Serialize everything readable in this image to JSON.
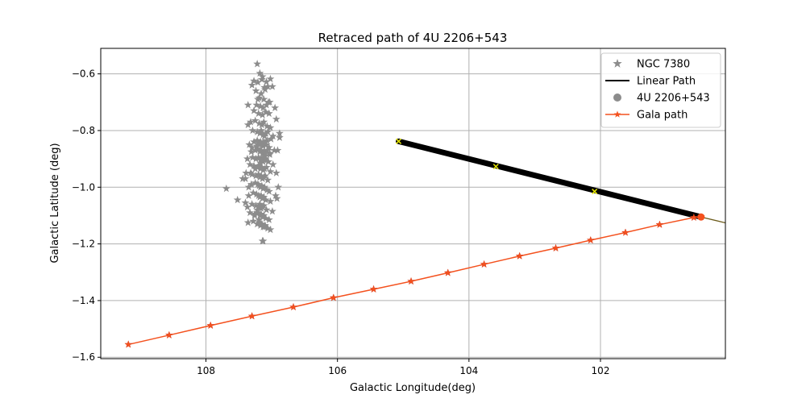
{
  "chart_data": {
    "type": "scatter",
    "title": "Retraced path of 4U 2206+543",
    "xlabel": "Galactic Longitude(deg)",
    "ylabel": "Galactic Latitude (deg)",
    "xlim": [
      109.6,
      100.1
    ],
    "ylim": [
      -1.605,
      -0.51
    ],
    "x_inverted": true,
    "xticks": [
      108,
      106,
      104,
      102
    ],
    "xtick_labels": [
      "108",
      "106",
      "104",
      "102"
    ],
    "yticks": [
      -1.6,
      -1.4,
      -1.2,
      -1.0,
      -0.8,
      -0.6
    ],
    "ytick_labels": [
      "−1.6",
      "−1.4",
      "−1.2",
      "−1.0",
      "−0.8",
      "−0.6"
    ],
    "grid": true,
    "legend_position": "top-right",
    "series": [
      {
        "name": "NGC 7380",
        "marker": "star",
        "color": "#8c8c8c",
        "x": [
          107.22,
          107.18,
          107.14,
          107.27,
          107.21,
          107.15,
          107.08,
          107.02,
          107.11,
          107.06,
          107.3,
          107.24,
          107.16,
          107.1,
          106.99,
          107.19,
          107.12,
          107.05,
          107.23,
          107.17,
          107.13,
          107.08,
          107.03,
          106.95,
          107.27,
          107.2,
          107.14,
          107.09,
          107.04,
          106.93,
          107.32,
          107.25,
          107.19,
          107.15,
          107.12,
          107.07,
          107.02,
          106.88,
          107.36,
          107.29,
          107.22,
          107.18,
          107.16,
          107.13,
          107.11,
          107.09,
          107.06,
          107.01,
          107.34,
          107.27,
          107.22,
          107.19,
          107.17,
          107.15,
          107.13,
          107.11,
          107.08,
          107.04,
          106.96,
          107.31,
          107.25,
          107.21,
          107.18,
          107.16,
          107.14,
          107.12,
          107.1,
          107.07,
          107.03,
          107.37,
          107.29,
          107.24,
          107.2,
          107.17,
          107.15,
          107.13,
          107.11,
          107.09,
          107.05,
          106.98,
          107.33,
          107.27,
          107.22,
          107.19,
          107.17,
          107.15,
          107.13,
          107.11,
          107.08,
          107.02,
          107.39,
          107.3,
          107.24,
          107.2,
          107.18,
          107.16,
          107.14,
          107.12,
          107.1,
          107.06,
          106.93,
          107.31,
          107.25,
          107.21,
          107.19,
          107.17,
          107.15,
          107.13,
          107.11,
          107.07,
          107.35,
          107.28,
          107.23,
          107.2,
          107.18,
          107.16,
          107.14,
          107.12,
          107.09,
          107.02,
          106.92,
          107.4,
          107.3,
          107.24,
          107.2,
          107.18,
          107.16,
          107.14,
          107.12,
          107.08,
          106.99,
          107.33,
          107.26,
          107.21,
          107.18,
          107.16,
          107.14,
          107.12,
          107.09,
          107.04,
          106.9,
          107.36,
          107.28,
          107.22,
          107.19,
          107.17,
          107.15,
          107.13,
          107.1,
          107.06,
          106.94,
          107.44,
          107.32,
          107.25,
          107.2,
          107.17,
          107.15,
          107.13,
          107.1,
          107.03,
          106.91,
          107.69,
          107.4,
          107.3,
          107.23,
          107.18,
          107.16,
          107.13,
          107.07,
          106.98,
          106.88,
          107.52,
          107.37,
          107.26,
          107.19,
          107.15,
          107.11,
          107.02,
          107.35,
          107.22,
          107.14,
          107.04,
          107.36,
          107.21,
          107.13
        ],
        "y": [
          -0.565,
          -0.598,
          -0.61,
          -0.625,
          -0.63,
          -0.62,
          -0.628,
          -0.618,
          -0.648,
          -0.645,
          -0.64,
          -0.66,
          -0.67,
          -0.655,
          -0.645,
          -0.685,
          -0.69,
          -0.7,
          -0.71,
          -0.715,
          -0.72,
          -0.71,
          -0.7,
          -0.72,
          -0.73,
          -0.74,
          -0.745,
          -0.735,
          -0.74,
          -0.76,
          -0.77,
          -0.765,
          -0.775,
          -0.78,
          -0.77,
          -0.785,
          -0.79,
          -0.825,
          -0.78,
          -0.8,
          -0.805,
          -0.81,
          -0.8,
          -0.815,
          -0.82,
          -0.81,
          -0.805,
          -0.83,
          -0.85,
          -0.84,
          -0.835,
          -0.845,
          -0.84,
          -0.85,
          -0.855,
          -0.845,
          -0.85,
          -0.86,
          -0.87,
          -0.875,
          -0.87,
          -0.865,
          -0.875,
          -0.87,
          -0.88,
          -0.875,
          -0.88,
          -0.87,
          -0.885,
          -0.9,
          -0.895,
          -0.9,
          -0.895,
          -0.905,
          -0.9,
          -0.91,
          -0.905,
          -0.9,
          -0.91,
          -0.92,
          -0.92,
          -0.925,
          -0.93,
          -0.925,
          -0.935,
          -0.93,
          -0.94,
          -0.935,
          -0.93,
          -0.945,
          -0.95,
          -0.955,
          -0.96,
          -0.955,
          -0.965,
          -0.96,
          -0.97,
          -0.965,
          -0.96,
          -0.975,
          -0.95,
          -0.99,
          -0.985,
          -0.99,
          -0.995,
          -1.0,
          -0.995,
          -1.005,
          -1.0,
          -1.01,
          -1.03,
          -1.02,
          -1.025,
          -1.03,
          -1.035,
          -1.03,
          -1.04,
          -1.035,
          -1.045,
          -1.05,
          -1.04,
          -1.055,
          -1.06,
          -1.065,
          -1.07,
          -1.06,
          -1.075,
          -1.07,
          -1.065,
          -1.08,
          -1.085,
          -1.09,
          -1.095,
          -1.09,
          -1.1,
          -1.095,
          -1.105,
          -1.1,
          -1.11,
          -1.115,
          -1.0,
          -1.125,
          -1.12,
          -1.13,
          -1.125,
          -1.135,
          -1.13,
          -1.14,
          -1.135,
          -1.145,
          -1.03,
          -0.97,
          -0.95,
          -0.935,
          -0.925,
          -0.915,
          -0.905,
          -0.895,
          -0.89,
          -0.88,
          -0.87,
          -1.005,
          -0.97,
          -0.86,
          -0.855,
          -0.85,
          -0.845,
          -0.84,
          -0.835,
          -0.82,
          -0.81,
          -1.045,
          -1.07,
          -1.1,
          -1.115,
          -1.13,
          -1.14,
          -1.15,
          -1.0,
          -1.08,
          -1.19,
          -1.015,
          -0.71,
          -0.69,
          -1.19
        ]
      },
      {
        "name": "Linear Path",
        "type": "line",
        "color": "#000000",
        "x": [
          105.07,
          100.47
        ],
        "y": [
          -0.838,
          -1.105
        ]
      },
      {
        "name": "4U 2206+543",
        "marker": "circle",
        "color": "#f4511e",
        "x": [
          100.47
        ],
        "y": [
          -1.105
        ]
      },
      {
        "name": "Gala path",
        "marker": "star",
        "color": "#f4511e",
        "x": [
          109.18,
          108.56,
          107.93,
          107.3,
          106.67,
          106.06,
          105.45,
          104.88,
          104.32,
          103.77,
          103.23,
          102.68,
          102.15,
          101.62,
          101.1,
          100.58,
          100.47
        ],
        "y": [
          -1.555,
          -1.522,
          -1.488,
          -1.455,
          -1.423,
          -1.39,
          -1.36,
          -1.332,
          -1.302,
          -1.272,
          -1.243,
          -1.215,
          -1.187,
          -1.16,
          -1.132,
          -1.107,
          -1.105
        ]
      }
    ],
    "dense_band": {
      "color": "#000000",
      "x": [
        105.07,
        100.47
      ],
      "y": [
        -0.838,
        -1.105
      ]
    },
    "extension_line": {
      "color": "#6b5a1a",
      "x": [
        100.47,
        99.9
      ],
      "y": [
        -1.105,
        -1.137
      ]
    },
    "cross_markers": {
      "marker": "x",
      "color": "#e6e600",
      "x": [
        105.07,
        103.59,
        102.09
      ],
      "y": [
        -0.838,
        -0.927,
        -1.015
      ]
    }
  }
}
